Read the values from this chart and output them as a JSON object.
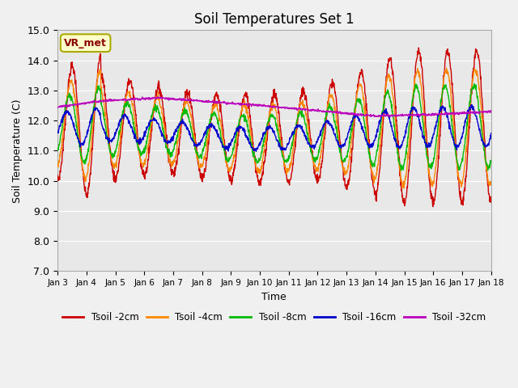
{
  "title": "Soil Temperatures Set 1",
  "xlabel": "Time",
  "ylabel": "Soil Temperature (C)",
  "ylim": [
    7.0,
    15.0
  ],
  "yticks": [
    7.0,
    8.0,
    9.0,
    10.0,
    11.0,
    12.0,
    13.0,
    14.0,
    15.0
  ],
  "xtick_labels": [
    "Jan 3",
    "Jan 4",
    "Jan 5",
    "Jan 6",
    "Jan 7",
    "Jan 8",
    "Jan 9",
    "Jan 10",
    "Jan 11",
    "Jan 12",
    "Jan 13",
    "Jan 14",
    "Jan 15",
    "Jan 16",
    "Jan 17",
    "Jan 18"
  ],
  "colors": {
    "2cm": "#cc0000",
    "4cm": "#ff8800",
    "8cm": "#00bb00",
    "16cm": "#0000cc",
    "32cm": "#bb00bb"
  },
  "legend_labels": [
    "Tsoil -2cm",
    "Tsoil -4cm",
    "Tsoil -8cm",
    "Tsoil -16cm",
    "Tsoil -32cm"
  ],
  "annotation_text": "VR_met",
  "bg_color": "#e8e8e8",
  "fig_color": "#f0f0f0",
  "grid_color": "#ffffff",
  "n_points": 1500
}
